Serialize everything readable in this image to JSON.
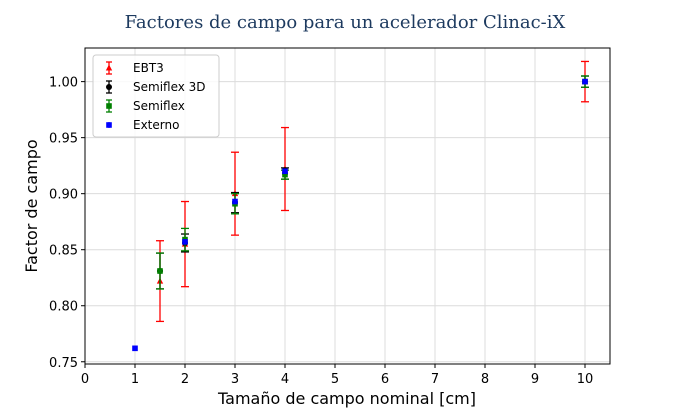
{
  "chart_data": {
    "type": "scatter",
    "title": "Factores de campo para un acelerador Clinac-iX",
    "xlabel": "Tamaño de campo nominal [cm]",
    "ylabel": "Factor de campo",
    "xlim": [
      0,
      10.5
    ],
    "ylim": [
      0.748,
      1.03
    ],
    "xticks": [
      0,
      1,
      2,
      3,
      4,
      5,
      6,
      7,
      8,
      9,
      10
    ],
    "yticks": [
      0.75,
      0.8,
      0.85,
      0.9,
      0.95,
      1.0
    ],
    "xtick_labels": [
      "0",
      "1",
      "2",
      "3",
      "4",
      "5",
      "6",
      "7",
      "8",
      "9",
      "10"
    ],
    "ytick_labels": [
      "0.75",
      "0.80",
      "0.85",
      "0.90",
      "0.95",
      "1.00"
    ],
    "grid": true,
    "legend_position": "top-left",
    "series": [
      {
        "name": "EBT3",
        "color": "#ff0000",
        "marker": "triangle",
        "x": [
          1.5,
          2,
          3,
          4,
          10
        ],
        "y": [
          0.822,
          0.855,
          0.9,
          0.922,
          1.0
        ],
        "err": [
          0.036,
          0.038,
          0.037,
          0.037,
          0.018
        ]
      },
      {
        "name": "Semiflex 3D",
        "color": "#000000",
        "marker": "circle",
        "x": [
          1.5,
          2,
          3,
          4,
          10
        ],
        "y": [
          0.831,
          0.856,
          0.892,
          0.918,
          1.0
        ],
        "err": [
          0.016,
          0.008,
          0.009,
          0.005,
          0.005
        ]
      },
      {
        "name": "Semiflex",
        "color": "#008000",
        "marker": "square",
        "x": [
          1.5,
          2,
          3,
          4,
          10
        ],
        "y": [
          0.831,
          0.859,
          0.891,
          0.917,
          1.0
        ],
        "err": [
          0.016,
          0.01,
          0.009,
          0.004,
          0.005
        ]
      },
      {
        "name": "Externo",
        "color": "#0000ff",
        "marker": "square",
        "x": [
          1,
          2,
          3,
          4,
          10
        ],
        "y": [
          0.762,
          0.857,
          0.893,
          0.92,
          1.0
        ],
        "err": [
          0,
          0,
          0,
          0,
          0
        ]
      }
    ]
  }
}
